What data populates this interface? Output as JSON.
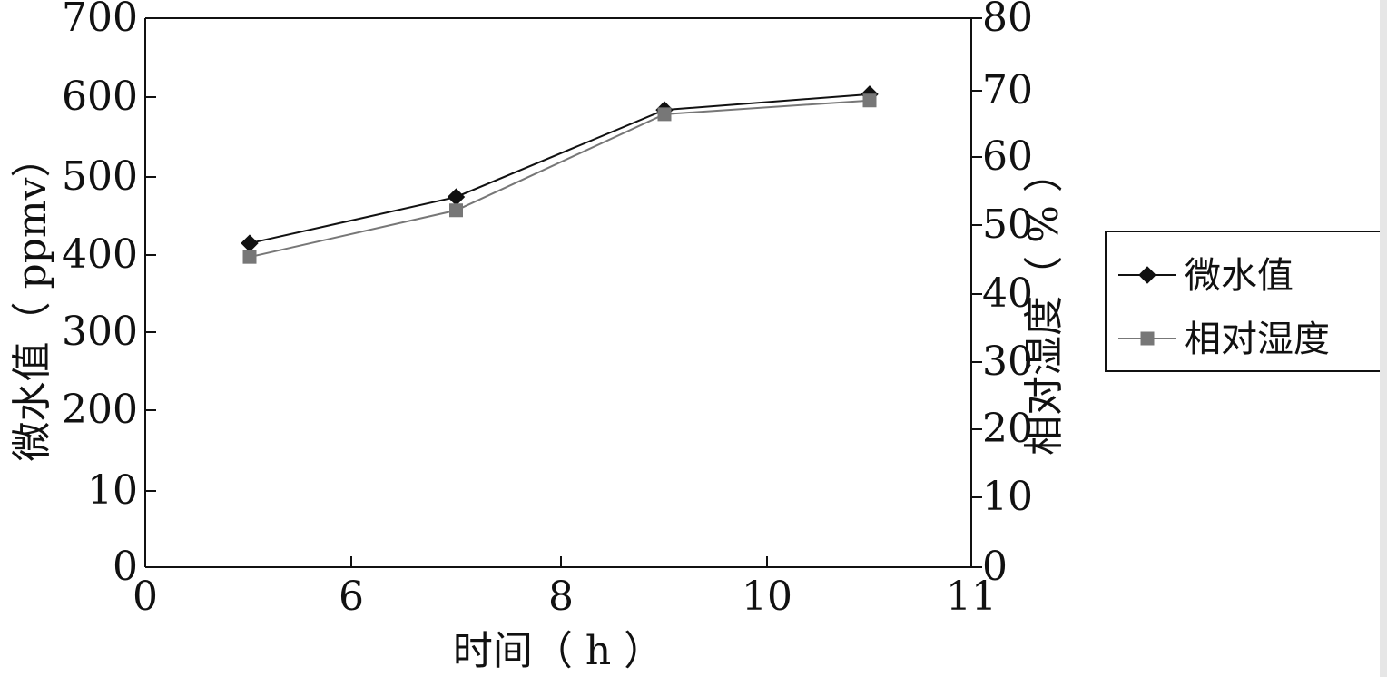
{
  "chart_data": {
    "type": "line",
    "x": [
      5,
      7,
      9,
      11
    ],
    "xlabel": "时间（ h ）",
    "x_ticks": [
      "0",
      "6",
      "8",
      "10",
      "11"
    ],
    "ylabel": "微水值（ ppmv）",
    "y_ticks": [
      "700",
      "600",
      "500",
      "400",
      "300",
      "200",
      "10",
      "0"
    ],
    "y2label": "相对湿度（ % ）",
    "y2_ticks": [
      "80",
      "70",
      "60",
      "50",
      "40",
      "30",
      "20",
      "10",
      "0"
    ],
    "ylim": [
      0,
      700
    ],
    "y2lim": [
      0,
      80
    ],
    "legend_position": "right",
    "series": [
      {
        "name": "微水值",
        "axis": "left",
        "values": [
          413,
          472,
          583,
          603
        ],
        "color": "#111111",
        "marker": "diamond"
      },
      {
        "name": "相对湿度",
        "axis": "right",
        "values": [
          45.2,
          52.0,
          66.0,
          68.0
        ],
        "color": "#777777",
        "marker": "square"
      }
    ]
  }
}
